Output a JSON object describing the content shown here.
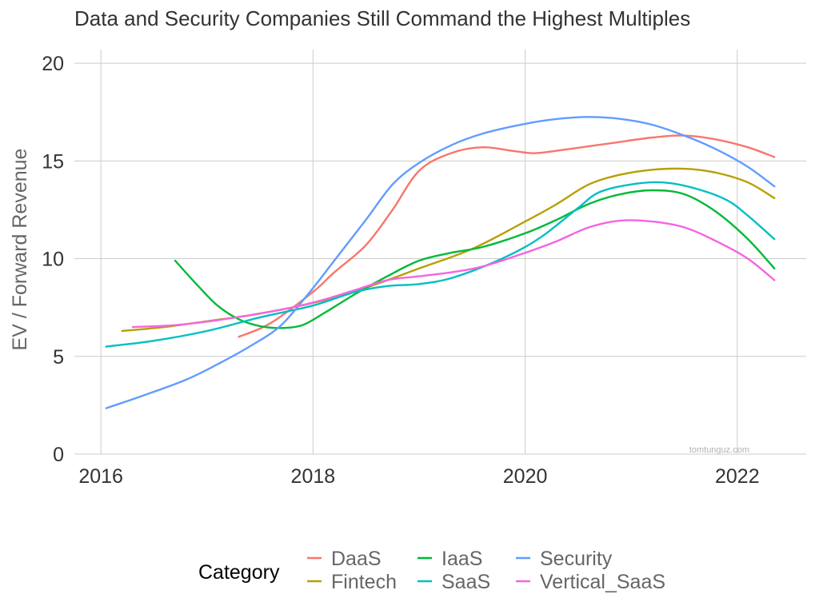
{
  "chart_data": {
    "type": "line",
    "title": "Data and Security Companies Still Command the Highest Multiples",
    "xlabel": "",
    "ylabel": "EV / Forward Revenue",
    "xlim": [
      2015.75,
      2022.65
    ],
    "ylim": [
      0,
      20.7
    ],
    "x_ticks": [
      2016,
      2018,
      2020,
      2022
    ],
    "y_ticks": [
      0,
      5,
      10,
      15,
      20
    ],
    "grid": true,
    "legend": {
      "title": "Category",
      "position": "bottom"
    },
    "watermark": "tomtunguz.com",
    "series": [
      {
        "name": "DaaS",
        "color": "#F8766D",
        "points": [
          [
            2017.3,
            6.0
          ],
          [
            2017.6,
            6.7
          ],
          [
            2018.0,
            8.3
          ],
          [
            2018.2,
            9.3
          ],
          [
            2018.5,
            10.7
          ],
          [
            2018.75,
            12.5
          ],
          [
            2019.0,
            14.5
          ],
          [
            2019.3,
            15.4
          ],
          [
            2019.6,
            15.7
          ],
          [
            2019.9,
            15.5
          ],
          [
            2020.1,
            15.4
          ],
          [
            2020.4,
            15.6
          ],
          [
            2020.8,
            15.9
          ],
          [
            2021.2,
            16.2
          ],
          [
            2021.5,
            16.3
          ],
          [
            2021.8,
            16.1
          ],
          [
            2022.1,
            15.7
          ],
          [
            2022.35,
            15.2
          ]
        ]
      },
      {
        "name": "Fintech",
        "color": "#B79F00",
        "points": [
          [
            2016.2,
            6.3
          ],
          [
            2016.6,
            6.5
          ],
          [
            2017.0,
            6.8
          ],
          [
            2017.4,
            7.1
          ],
          [
            2017.8,
            7.5
          ],
          [
            2018.2,
            8.0
          ],
          [
            2018.6,
            8.7
          ],
          [
            2019.0,
            9.5
          ],
          [
            2019.5,
            10.5
          ],
          [
            2020.0,
            11.9
          ],
          [
            2020.3,
            12.8
          ],
          [
            2020.6,
            13.8
          ],
          [
            2020.9,
            14.3
          ],
          [
            2021.2,
            14.55
          ],
          [
            2021.5,
            14.6
          ],
          [
            2021.8,
            14.4
          ],
          [
            2022.1,
            13.9
          ],
          [
            2022.35,
            13.1
          ]
        ]
      },
      {
        "name": "IaaS",
        "color": "#00BA38",
        "points": [
          [
            2016.7,
            9.9
          ],
          [
            2016.9,
            8.7
          ],
          [
            2017.1,
            7.6
          ],
          [
            2017.3,
            6.9
          ],
          [
            2017.5,
            6.55
          ],
          [
            2017.7,
            6.45
          ],
          [
            2017.9,
            6.6
          ],
          [
            2018.1,
            7.2
          ],
          [
            2018.4,
            8.2
          ],
          [
            2018.7,
            9.1
          ],
          [
            2019.0,
            9.9
          ],
          [
            2019.3,
            10.3
          ],
          [
            2019.6,
            10.6
          ],
          [
            2020.0,
            11.3
          ],
          [
            2020.3,
            12.0
          ],
          [
            2020.6,
            12.8
          ],
          [
            2020.9,
            13.3
          ],
          [
            2021.2,
            13.5
          ],
          [
            2021.5,
            13.3
          ],
          [
            2021.8,
            12.4
          ],
          [
            2022.1,
            11.0
          ],
          [
            2022.35,
            9.5
          ]
        ]
      },
      {
        "name": "SaaS",
        "color": "#00BFC4",
        "points": [
          [
            2016.05,
            5.5
          ],
          [
            2016.5,
            5.8
          ],
          [
            2017.0,
            6.3
          ],
          [
            2017.5,
            7.0
          ],
          [
            2018.0,
            7.6
          ],
          [
            2018.4,
            8.3
          ],
          [
            2018.7,
            8.6
          ],
          [
            2019.0,
            8.7
          ],
          [
            2019.3,
            9.0
          ],
          [
            2019.7,
            9.8
          ],
          [
            2020.0,
            10.6
          ],
          [
            2020.2,
            11.3
          ],
          [
            2020.5,
            12.6
          ],
          [
            2020.7,
            13.4
          ],
          [
            2021.0,
            13.8
          ],
          [
            2021.3,
            13.9
          ],
          [
            2021.6,
            13.6
          ],
          [
            2021.9,
            13.0
          ],
          [
            2022.1,
            12.2
          ],
          [
            2022.35,
            11.0
          ]
        ]
      },
      {
        "name": "Security",
        "color": "#619CFF",
        "points": [
          [
            2016.05,
            2.35
          ],
          [
            2016.4,
            3.0
          ],
          [
            2016.8,
            3.8
          ],
          [
            2017.1,
            4.6
          ],
          [
            2017.4,
            5.5
          ],
          [
            2017.7,
            6.6
          ],
          [
            2018.0,
            8.5
          ],
          [
            2018.2,
            9.9
          ],
          [
            2018.5,
            12.0
          ],
          [
            2018.75,
            13.8
          ],
          [
            2019.0,
            14.9
          ],
          [
            2019.3,
            15.8
          ],
          [
            2019.6,
            16.4
          ],
          [
            2020.0,
            16.9
          ],
          [
            2020.3,
            17.15
          ],
          [
            2020.6,
            17.25
          ],
          [
            2020.9,
            17.15
          ],
          [
            2021.2,
            16.85
          ],
          [
            2021.5,
            16.3
          ],
          [
            2021.8,
            15.6
          ],
          [
            2022.1,
            14.7
          ],
          [
            2022.35,
            13.7
          ]
        ]
      },
      {
        "name": "Vertical_SaaS",
        "color": "#F564E3",
        "points": [
          [
            2016.3,
            6.5
          ],
          [
            2016.7,
            6.6
          ],
          [
            2017.1,
            6.85
          ],
          [
            2017.5,
            7.2
          ],
          [
            2017.8,
            7.5
          ],
          [
            2018.1,
            7.9
          ],
          [
            2018.4,
            8.4
          ],
          [
            2018.7,
            8.9
          ],
          [
            2019.0,
            9.1
          ],
          [
            2019.3,
            9.3
          ],
          [
            2019.6,
            9.6
          ],
          [
            2020.0,
            10.3
          ],
          [
            2020.3,
            10.9
          ],
          [
            2020.6,
            11.6
          ],
          [
            2020.9,
            11.95
          ],
          [
            2021.2,
            11.9
          ],
          [
            2021.5,
            11.6
          ],
          [
            2021.8,
            10.9
          ],
          [
            2022.1,
            10.0
          ],
          [
            2022.35,
            8.9
          ]
        ]
      }
    ]
  }
}
